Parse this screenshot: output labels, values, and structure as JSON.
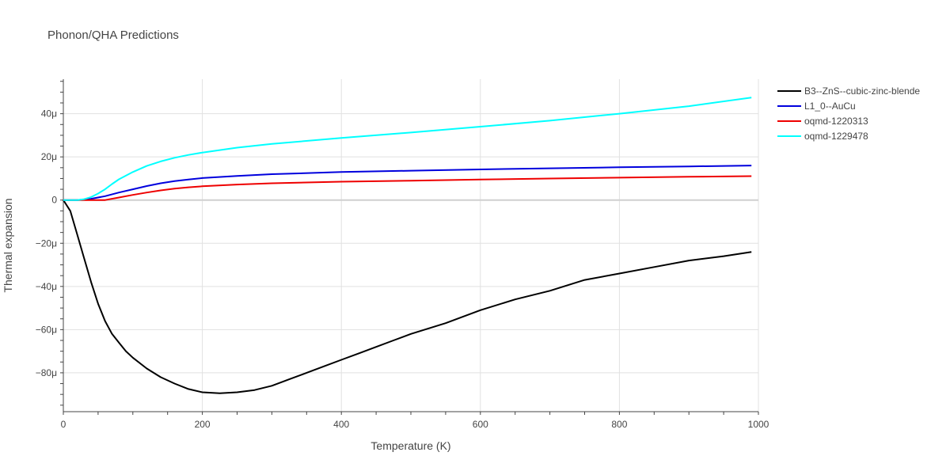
{
  "chart_data": {
    "type": "line",
    "title": "Phonon/QHA Predictions",
    "xlabel": "Temperature (K)",
    "ylabel": "Thermal expansion",
    "xlim": [
      0,
      1000
    ],
    "ylim": [
      -98,
      56
    ],
    "x_ticks": [
      0,
      200,
      400,
      600,
      800,
      1000
    ],
    "x_tick_labels": [
      "0",
      "200",
      "400",
      "600",
      "800",
      "1000"
    ],
    "y_ticks": [
      -80,
      -60,
      -40,
      -20,
      0,
      20,
      40
    ],
    "y_tick_labels": [
      "−80μ",
      "−60μ",
      "−40μ",
      "−20μ",
      "0",
      "20μ",
      "40μ"
    ],
    "y_unit_scale": "1e-6",
    "grid": true,
    "legend_position": "top-right outside",
    "series": [
      {
        "name": "B3--ZnS--cubic-zinc-blende",
        "color": "#000000",
        "x": [
          0,
          10,
          20,
          30,
          40,
          50,
          60,
          70,
          80,
          90,
          100,
          120,
          140,
          160,
          180,
          200,
          225,
          250,
          275,
          300,
          325,
          350,
          375,
          400,
          425,
          450,
          475,
          500,
          550,
          600,
          650,
          700,
          750,
          800,
          850,
          900,
          950,
          990
        ],
        "y": [
          0,
          -5,
          -16,
          -27,
          -38,
          -48,
          -56,
          -62,
          -66,
          -70,
          -73,
          -78,
          -82,
          -85,
          -87.5,
          -89,
          -89.5,
          -89,
          -88,
          -86,
          -83,
          -80,
          -77,
          -74,
          -71,
          -68,
          -65,
          -62,
          -57,
          -51,
          -46,
          -42,
          -37,
          -34,
          -31,
          -28,
          -26,
          -24
        ]
      },
      {
        "name": "L1_0--AuCu",
        "color": "#0000dd",
        "x": [
          0,
          20,
          40,
          60,
          80,
          100,
          120,
          140,
          160,
          180,
          200,
          250,
          300,
          400,
          500,
          600,
          700,
          800,
          900,
          990
        ],
        "y": [
          0,
          0,
          0.6,
          1.8,
          3.5,
          5,
          6.5,
          7.8,
          8.8,
          9.5,
          10.2,
          11.2,
          12,
          13,
          13.6,
          14.2,
          14.7,
          15.2,
          15.6,
          16
        ]
      },
      {
        "name": "oqmd-1220313",
        "color": "#ee0000",
        "x": [
          0,
          20,
          40,
          60,
          80,
          100,
          120,
          140,
          160,
          180,
          200,
          250,
          300,
          400,
          500,
          600,
          700,
          800,
          900,
          990
        ],
        "y": [
          0,
          0,
          0,
          0,
          1.2,
          2.4,
          3.5,
          4.5,
          5.3,
          5.9,
          6.4,
          7.2,
          7.8,
          8.5,
          9,
          9.5,
          10,
          10.4,
          10.8,
          11.1
        ]
      },
      {
        "name": "oqmd-1229478",
        "color": "#00ffff",
        "x": [
          0,
          20,
          30,
          40,
          50,
          60,
          70,
          80,
          100,
          120,
          140,
          160,
          180,
          200,
          250,
          300,
          400,
          500,
          600,
          700,
          800,
          900,
          990
        ],
        "y": [
          0,
          0,
          0.4,
          1.4,
          3,
          5,
          7.4,
          9.6,
          13,
          15.8,
          17.9,
          19.6,
          20.9,
          22,
          24.3,
          26,
          28.8,
          31.3,
          34,
          36.8,
          40,
          43.5,
          47.5
        ]
      }
    ]
  }
}
